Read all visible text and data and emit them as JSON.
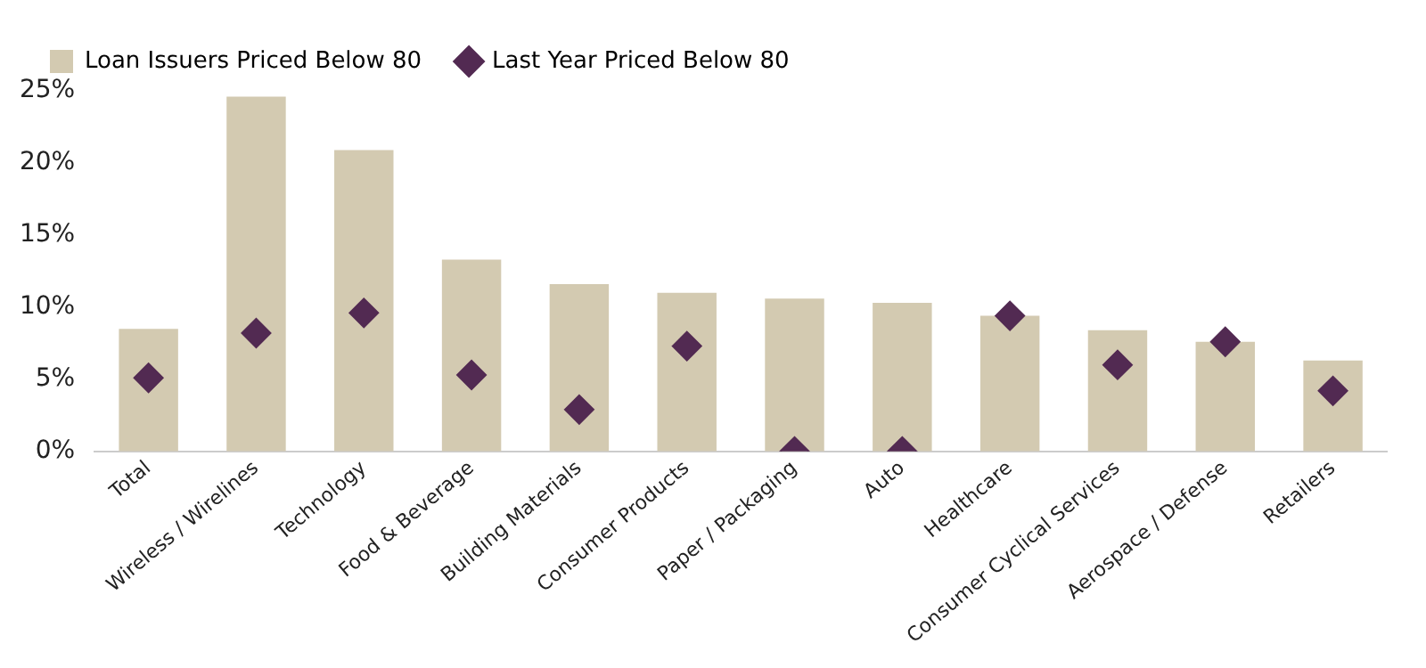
{
  "chart_data": {
    "type": "bar",
    "categories": [
      "Total",
      "Wireless / Wirelines",
      "Technology",
      "Food & Beverage",
      "Building Materials",
      "Consumer Products",
      "Paper / Packaging",
      "Auto",
      "Healthcare",
      "Consumer Cyclical Services",
      "Aerospace / Defense",
      "Retailers"
    ],
    "series": [
      {
        "name": "Loan Issuers Priced Below 80",
        "color": "#d3cab1",
        "values": [
          8.5,
          24.6,
          20.9,
          13.3,
          11.6,
          11.0,
          10.6,
          10.3,
          9.4,
          8.4,
          7.6,
          6.3
        ]
      },
      {
        "name": "Last Year Priced Below 80",
        "type": "scatter",
        "color": "#522a52",
        "values": [
          5.1,
          8.2,
          9.6,
          5.3,
          2.9,
          7.3,
          0,
          0,
          9.4,
          6.0,
          7.6,
          4.2
        ]
      }
    ],
    "ylim": [
      0,
      25
    ],
    "yticks": [
      {
        "value": 0,
        "label": "0%"
      },
      {
        "value": 5,
        "label": "5%"
      },
      {
        "value": 10,
        "label": "10%"
      },
      {
        "value": 15,
        "label": "15%"
      },
      {
        "value": 20,
        "label": "20%"
      },
      {
        "value": 25,
        "label": "25%"
      }
    ],
    "grid": false,
    "legend": "top left",
    "marker": "diamond"
  }
}
